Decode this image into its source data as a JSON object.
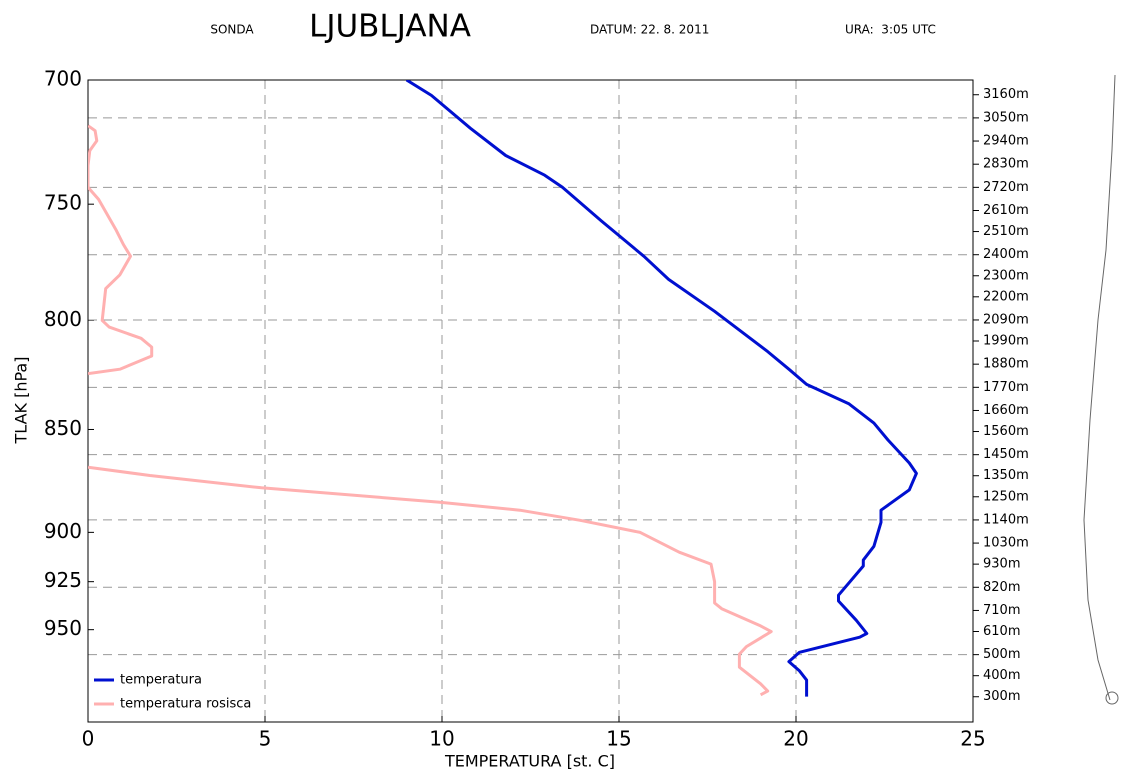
{
  "chart_data": {
    "type": "line",
    "header": {
      "label": "SONDA",
      "station": "LJUBLJANA",
      "date": "DATUM: 22. 8. 2011",
      "time": "URA:  3:05 UTC"
    },
    "xlabel": "TEMPERATURA [st. C]",
    "ylabel": "TLAK [hPa]",
    "xlim": [
      0,
      25
    ],
    "xticks": [
      0,
      5,
      10,
      15,
      20,
      25
    ],
    "ylim": [
      1000,
      700
    ],
    "ylog": true,
    "yticks": [
      700,
      750,
      800,
      850,
      900,
      925,
      950
    ],
    "y2lim": [
      180,
      3230
    ],
    "y2ticks": [
      {
        "value": 3160,
        "label": "3160m"
      },
      {
        "value": 3050,
        "label": "3050m"
      },
      {
        "value": 2940,
        "label": "2940m"
      },
      {
        "value": 2830,
        "label": "2830m"
      },
      {
        "value": 2720,
        "label": "2720m"
      },
      {
        "value": 2610,
        "label": "2610m"
      },
      {
        "value": 2510,
        "label": "2510m"
      },
      {
        "value": 2400,
        "label": "2400m"
      },
      {
        "value": 2300,
        "label": "2300m"
      },
      {
        "value": 2200,
        "label": "2200m"
      },
      {
        "value": 2090,
        "label": "2090m"
      },
      {
        "value": 1990,
        "label": "1990m"
      },
      {
        "value": 1880,
        "label": "1880m"
      },
      {
        "value": 1770,
        "label": "1770m"
      },
      {
        "value": 1660,
        "label": "1660m"
      },
      {
        "value": 1560,
        "label": "1560m"
      },
      {
        "value": 1450,
        "label": "1450m"
      },
      {
        "value": 1350,
        "label": "1350m"
      },
      {
        "value": 1250,
        "label": "1250m"
      },
      {
        "value": 1140,
        "label": "1140m"
      },
      {
        "value": 1030,
        "label": "1030m"
      },
      {
        "value": 930,
        "label": "930m"
      },
      {
        "value": 820,
        "label": "820m"
      },
      {
        "value": 710,
        "label": "710m"
      },
      {
        "value": 610,
        "label": "610m"
      },
      {
        "value": 500,
        "label": "500m"
      },
      {
        "value": 400,
        "label": "400m"
      },
      {
        "value": 300,
        "label": "300m"
      }
    ],
    "grid": true,
    "legend": "lower left",
    "series": [
      {
        "name": "temperatura",
        "color": "#0010d0",
        "x": [
          9.0,
          9.7,
          10.8,
          11.8,
          12.9,
          13.4,
          14.5,
          15.7,
          16.4,
          17.7,
          19.2,
          19.8,
          20.3,
          21.5,
          22.2,
          22.6,
          23.2,
          23.4,
          23.2,
          22.4,
          22.4,
          22.2,
          21.9,
          21.9,
          21.2,
          21.2,
          21.7,
          22.0,
          21.8,
          20.1,
          19.8,
          20.1,
          20.3,
          20.3
        ],
        "y": [
          700,
          706,
          719,
          730,
          738,
          743,
          757,
          772,
          782,
          796,
          814,
          822,
          829,
          838,
          847,
          855,
          866,
          871,
          879,
          889,
          895,
          907,
          914,
          917,
          932,
          935,
          945,
          952,
          954,
          962,
          967,
          972,
          977,
          986
        ]
      },
      {
        "name": "temperatura rosisca",
        "color": "#ffb0b0",
        "x": [
          0,
          0.2,
          0.25,
          0.05,
          0,
          0,
          0.3,
          0.8,
          1.0,
          1.2,
          0.9,
          0.5,
          0.4,
          0.6,
          1.5,
          1.8,
          1.8,
          0.9,
          0,
          null,
          0,
          1.75,
          4.9,
          9.9,
          12.2,
          13.9,
          15.6,
          16.7,
          17.6,
          17.7,
          17.7,
          17.9,
          19.0,
          19.3,
          18.6,
          18.4,
          18.4,
          19.0,
          19.2,
          19.0
        ],
        "y": [
          718,
          720,
          724,
          728,
          734,
          743,
          748,
          761,
          767,
          772,
          780,
          786,
          800,
          803,
          808,
          812,
          816,
          822,
          824,
          null,
          868,
          872,
          878,
          885,
          889,
          894,
          900,
          910,
          916,
          925,
          936,
          939,
          948,
          951,
          959,
          963,
          970,
          979,
          983,
          985
        ]
      }
    ]
  }
}
